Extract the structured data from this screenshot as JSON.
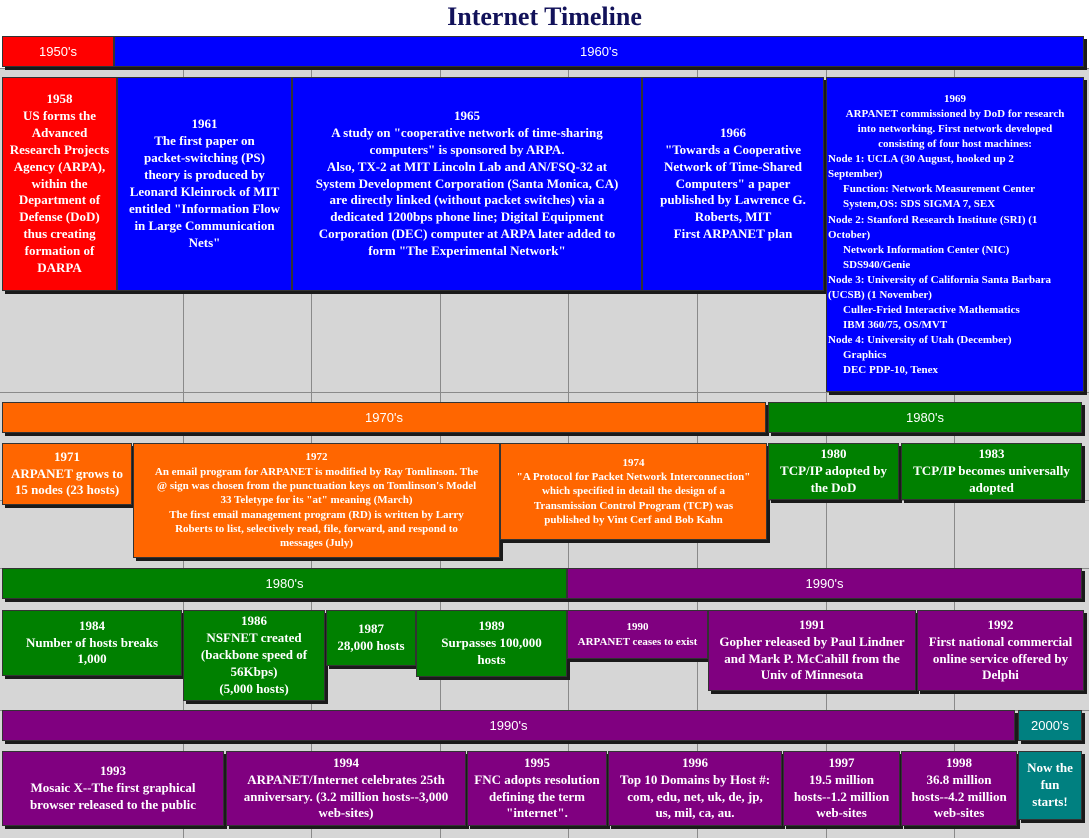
{
  "title": "Internet Timeline",
  "eras": [
    {
      "label": "1950's"
    },
    {
      "label": "1960's"
    },
    {
      "label": "1970's"
    },
    {
      "label": "1980's"
    },
    {
      "label": "1980's"
    },
    {
      "label": "1990's"
    },
    {
      "label": "1990's"
    },
    {
      "label": "2000's"
    }
  ],
  "events": [
    {
      "year": "1958",
      "lines": [
        "US forms the",
        "Advanced",
        "Research Projects",
        "Agency (ARPA),",
        "within the",
        "Department of",
        "Defense (DoD)",
        "thus creating",
        "formation of",
        "DARPA"
      ]
    },
    {
      "year": "1961",
      "lines": [
        "The first paper on",
        "packet-switching (PS)",
        "theory is produced by",
        "Leonard Kleinrock of MIT",
        "entitled \"Information Flow",
        "in Large Communication",
        "Nets\""
      ]
    },
    {
      "year": "1965",
      "lines": [
        "A study on \"cooperative network of time-sharing",
        "computers\" is sponsored by ARPA.",
        "Also, TX-2 at MIT Lincoln Lab and AN/FSQ-32 at",
        "System Development Corporation (Santa Monica, CA)",
        "are directly linked (without packet switches) via a",
        "dedicated 1200bps phone line; Digital Equipment",
        "Corporation (DEC) computer at ARPA later added to",
        "form \"The Experimental Network\""
      ]
    },
    {
      "year": "1966",
      "lines": [
        "\"Towards a Cooperative",
        "Network of Time-Shared",
        "Computers\" a paper",
        "published by Lawrence G.",
        "Roberts, MIT",
        "First ARPANET plan"
      ]
    },
    {
      "year": "1969",
      "lines": [
        "ARPANET commissioned by DoD for research",
        "into networking.  First network developed",
        "consisting of four host machines:",
        "Node 1: UCLA (30 August, hooked up 2",
        "September)",
        "Function: Network Measurement Center",
        "System,OS: SDS SIGMA 7, SEX",
        "Node 2: Stanford Research Institute (SRI) (1",
        "October)",
        "Network Information Center (NIC)",
        "SDS940/Genie",
        "Node 3: University of California Santa Barbara",
        "(UCSB) (1 November)",
        "Culler-Fried Interactive Mathematics",
        "IBM 360/75, OS/MVT",
        "Node 4: University of Utah (December)",
        "Graphics",
        "DEC PDP-10, Tenex"
      ]
    },
    {
      "year": "1971",
      "lines": [
        "ARPANET grows to",
        "15 nodes (23 hosts)"
      ]
    },
    {
      "year": "1972",
      "lines": [
        "An email program for ARPANET is modified by Ray Tomlinson. The",
        "@ sign was chosen from the punctuation keys on Tomlinson's Model",
        "33 Teletype for its \"at\" meaning (March)",
        "The first email management program (RD) is written by Larry",
        "Roberts to list, selectively read, file, forward, and respond to",
        "messages (July)"
      ]
    },
    {
      "year": "1974",
      "lines": [
        "\"A Protocol for Packet Network Interconnection\"",
        "which specified in detail the design of a",
        "Transmission Control Program (TCP) was",
        "published by Vint Cerf and Bob Kahn"
      ]
    },
    {
      "year": "1980",
      "lines": [
        "TCP/IP adopted by",
        "the DoD"
      ]
    },
    {
      "year": "1983",
      "lines": [
        "TCP/IP becomes universally",
        "adopted"
      ]
    },
    {
      "year": "1984",
      "lines": [
        "Number of hosts breaks",
        "1,000"
      ]
    },
    {
      "year": "1986",
      "lines": [
        "NSFNET created",
        "(backbone speed of",
        "56Kbps)",
        "(5,000 hosts)"
      ]
    },
    {
      "year": "1987",
      "lines": [
        "28,000 hosts"
      ]
    },
    {
      "year": "1989",
      "lines": [
        "Surpasses 100,000",
        "hosts"
      ]
    },
    {
      "year": "1990",
      "lines": [
        "ARPANET ceases to exist"
      ]
    },
    {
      "year": "1991",
      "lines": [
        "Gopher released by Paul Lindner",
        "and Mark P. McCahill from the",
        "Univ of Minnesota"
      ]
    },
    {
      "year": "1992",
      "lines": [
        "First national commercial",
        "online service offered by",
        "Delphi"
      ]
    },
    {
      "year": "1993",
      "lines": [
        "Mosaic X--The first graphical",
        "browser released to the public"
      ]
    },
    {
      "year": "1994",
      "lines": [
        "ARPANET/Internet celebrates 25th",
        "anniversary.  (3.2 million hosts--3,000",
        "web-sites)"
      ]
    },
    {
      "year": "1995",
      "lines": [
        "FNC adopts resolution",
        "defining the term",
        "\"internet\"."
      ]
    },
    {
      "year": "1996",
      "lines": [
        "Top 10 Domains by Host #:",
        "com, edu, net, uk, de, jp,",
        "us, mil, ca, au."
      ]
    },
    {
      "year": "1997",
      "lines": [
        "19.5 million",
        "hosts--1.2 million",
        "web-sites"
      ]
    },
    {
      "year": "1998",
      "lines": [
        "36.8 million",
        "hosts--4.2 million",
        "web-sites"
      ]
    },
    {
      "lines": [
        "Now the",
        "fun",
        "starts!"
      ]
    }
  ]
}
